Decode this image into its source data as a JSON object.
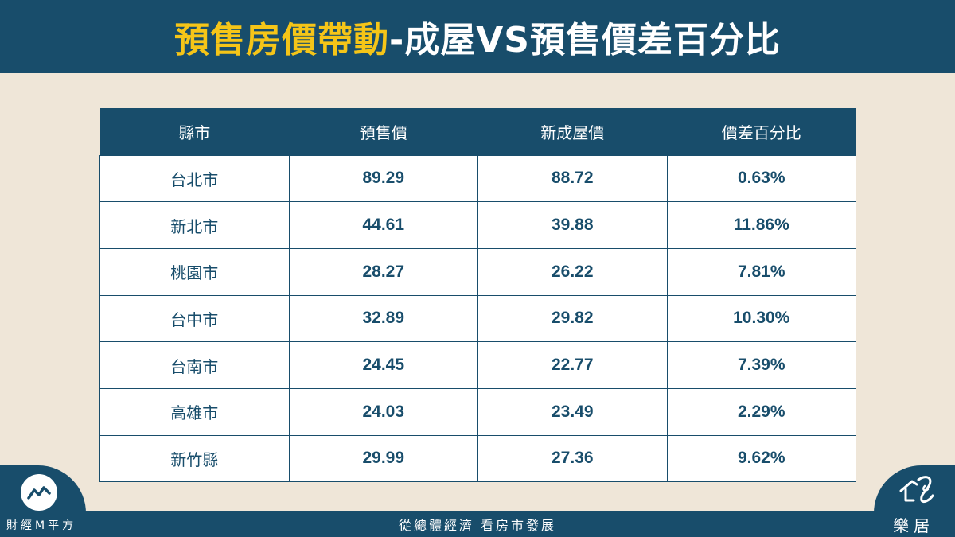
{
  "header": {
    "title_highlight": "預售房價帶動",
    "title_rest": "-成屋VS預售價差百分比"
  },
  "table": {
    "columns": [
      "縣市",
      "預售價",
      "新成屋價",
      "價差百分比"
    ],
    "rows": [
      [
        "台北市",
        "89.29",
        "88.72",
        "0.63%"
      ],
      [
        "新北市",
        "44.61",
        "39.88",
        "11.86%"
      ],
      [
        "桃園市",
        "28.27",
        "26.22",
        "7.81%"
      ],
      [
        "台中市",
        "32.89",
        "29.82",
        "10.30%"
      ],
      [
        "台南市",
        "24.45",
        "22.77",
        "7.39%"
      ],
      [
        "高雄市",
        "24.03",
        "23.49",
        "2.29%"
      ],
      [
        "新竹縣",
        "29.99",
        "27.36",
        "9.62%"
      ]
    ]
  },
  "footer": {
    "left_brand": "財經M平方",
    "slogan": "從總體經濟 看房市發展",
    "right_brand": "樂居"
  },
  "colors": {
    "primary": "#184d6b",
    "highlight": "#f5c518",
    "background": "#efe6d8"
  },
  "icons": {
    "left_logo": "chart-line-icon",
    "right_logo": "house-script-icon"
  }
}
